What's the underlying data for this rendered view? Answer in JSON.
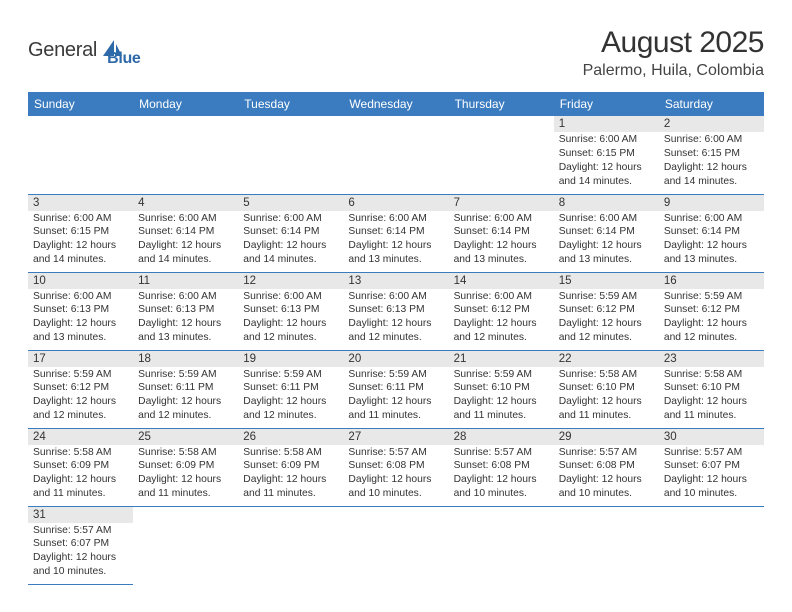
{
  "logo": {
    "text1": "General",
    "text2": "Blue"
  },
  "header": {
    "title": "August 2025",
    "location": "Palermo, Huila, Colombia"
  },
  "colors": {
    "header_bg": "#3b7bbf",
    "header_text": "#ffffff",
    "daynum_bg": "#e8e8e8",
    "border": "#3b7bbf",
    "text": "#333333",
    "logo_gray": "#3a3a3a",
    "logo_blue": "#2f6aa8"
  },
  "typography": {
    "title_fontsize": 30,
    "location_fontsize": 16,
    "weekday_fontsize": 12,
    "daynum_fontsize": 11.5,
    "info_fontsize": 10.3
  },
  "weekdays": [
    "Sunday",
    "Monday",
    "Tuesday",
    "Wednesday",
    "Thursday",
    "Friday",
    "Saturday"
  ],
  "weeks": [
    [
      null,
      null,
      null,
      null,
      null,
      {
        "day": "1",
        "sunrise": "Sunrise: 6:00 AM",
        "sunset": "Sunset: 6:15 PM",
        "daylight1": "Daylight: 12 hours",
        "daylight2": "and 14 minutes."
      },
      {
        "day": "2",
        "sunrise": "Sunrise: 6:00 AM",
        "sunset": "Sunset: 6:15 PM",
        "daylight1": "Daylight: 12 hours",
        "daylight2": "and 14 minutes."
      }
    ],
    [
      {
        "day": "3",
        "sunrise": "Sunrise: 6:00 AM",
        "sunset": "Sunset: 6:15 PM",
        "daylight1": "Daylight: 12 hours",
        "daylight2": "and 14 minutes."
      },
      {
        "day": "4",
        "sunrise": "Sunrise: 6:00 AM",
        "sunset": "Sunset: 6:14 PM",
        "daylight1": "Daylight: 12 hours",
        "daylight2": "and 14 minutes."
      },
      {
        "day": "5",
        "sunrise": "Sunrise: 6:00 AM",
        "sunset": "Sunset: 6:14 PM",
        "daylight1": "Daylight: 12 hours",
        "daylight2": "and 14 minutes."
      },
      {
        "day": "6",
        "sunrise": "Sunrise: 6:00 AM",
        "sunset": "Sunset: 6:14 PM",
        "daylight1": "Daylight: 12 hours",
        "daylight2": "and 13 minutes."
      },
      {
        "day": "7",
        "sunrise": "Sunrise: 6:00 AM",
        "sunset": "Sunset: 6:14 PM",
        "daylight1": "Daylight: 12 hours",
        "daylight2": "and 13 minutes."
      },
      {
        "day": "8",
        "sunrise": "Sunrise: 6:00 AM",
        "sunset": "Sunset: 6:14 PM",
        "daylight1": "Daylight: 12 hours",
        "daylight2": "and 13 minutes."
      },
      {
        "day": "9",
        "sunrise": "Sunrise: 6:00 AM",
        "sunset": "Sunset: 6:14 PM",
        "daylight1": "Daylight: 12 hours",
        "daylight2": "and 13 minutes."
      }
    ],
    [
      {
        "day": "10",
        "sunrise": "Sunrise: 6:00 AM",
        "sunset": "Sunset: 6:13 PM",
        "daylight1": "Daylight: 12 hours",
        "daylight2": "and 13 minutes."
      },
      {
        "day": "11",
        "sunrise": "Sunrise: 6:00 AM",
        "sunset": "Sunset: 6:13 PM",
        "daylight1": "Daylight: 12 hours",
        "daylight2": "and 13 minutes."
      },
      {
        "day": "12",
        "sunrise": "Sunrise: 6:00 AM",
        "sunset": "Sunset: 6:13 PM",
        "daylight1": "Daylight: 12 hours",
        "daylight2": "and 12 minutes."
      },
      {
        "day": "13",
        "sunrise": "Sunrise: 6:00 AM",
        "sunset": "Sunset: 6:13 PM",
        "daylight1": "Daylight: 12 hours",
        "daylight2": "and 12 minutes."
      },
      {
        "day": "14",
        "sunrise": "Sunrise: 6:00 AM",
        "sunset": "Sunset: 6:12 PM",
        "daylight1": "Daylight: 12 hours",
        "daylight2": "and 12 minutes."
      },
      {
        "day": "15",
        "sunrise": "Sunrise: 5:59 AM",
        "sunset": "Sunset: 6:12 PM",
        "daylight1": "Daylight: 12 hours",
        "daylight2": "and 12 minutes."
      },
      {
        "day": "16",
        "sunrise": "Sunrise: 5:59 AM",
        "sunset": "Sunset: 6:12 PM",
        "daylight1": "Daylight: 12 hours",
        "daylight2": "and 12 minutes."
      }
    ],
    [
      {
        "day": "17",
        "sunrise": "Sunrise: 5:59 AM",
        "sunset": "Sunset: 6:12 PM",
        "daylight1": "Daylight: 12 hours",
        "daylight2": "and 12 minutes."
      },
      {
        "day": "18",
        "sunrise": "Sunrise: 5:59 AM",
        "sunset": "Sunset: 6:11 PM",
        "daylight1": "Daylight: 12 hours",
        "daylight2": "and 12 minutes."
      },
      {
        "day": "19",
        "sunrise": "Sunrise: 5:59 AM",
        "sunset": "Sunset: 6:11 PM",
        "daylight1": "Daylight: 12 hours",
        "daylight2": "and 12 minutes."
      },
      {
        "day": "20",
        "sunrise": "Sunrise: 5:59 AM",
        "sunset": "Sunset: 6:11 PM",
        "daylight1": "Daylight: 12 hours",
        "daylight2": "and 11 minutes."
      },
      {
        "day": "21",
        "sunrise": "Sunrise: 5:59 AM",
        "sunset": "Sunset: 6:10 PM",
        "daylight1": "Daylight: 12 hours",
        "daylight2": "and 11 minutes."
      },
      {
        "day": "22",
        "sunrise": "Sunrise: 5:58 AM",
        "sunset": "Sunset: 6:10 PM",
        "daylight1": "Daylight: 12 hours",
        "daylight2": "and 11 minutes."
      },
      {
        "day": "23",
        "sunrise": "Sunrise: 5:58 AM",
        "sunset": "Sunset: 6:10 PM",
        "daylight1": "Daylight: 12 hours",
        "daylight2": "and 11 minutes."
      }
    ],
    [
      {
        "day": "24",
        "sunrise": "Sunrise: 5:58 AM",
        "sunset": "Sunset: 6:09 PM",
        "daylight1": "Daylight: 12 hours",
        "daylight2": "and 11 minutes."
      },
      {
        "day": "25",
        "sunrise": "Sunrise: 5:58 AM",
        "sunset": "Sunset: 6:09 PM",
        "daylight1": "Daylight: 12 hours",
        "daylight2": "and 11 minutes."
      },
      {
        "day": "26",
        "sunrise": "Sunrise: 5:58 AM",
        "sunset": "Sunset: 6:09 PM",
        "daylight1": "Daylight: 12 hours",
        "daylight2": "and 11 minutes."
      },
      {
        "day": "27",
        "sunrise": "Sunrise: 5:57 AM",
        "sunset": "Sunset: 6:08 PM",
        "daylight1": "Daylight: 12 hours",
        "daylight2": "and 10 minutes."
      },
      {
        "day": "28",
        "sunrise": "Sunrise: 5:57 AM",
        "sunset": "Sunset: 6:08 PM",
        "daylight1": "Daylight: 12 hours",
        "daylight2": "and 10 minutes."
      },
      {
        "day": "29",
        "sunrise": "Sunrise: 5:57 AM",
        "sunset": "Sunset: 6:08 PM",
        "daylight1": "Daylight: 12 hours",
        "daylight2": "and 10 minutes."
      },
      {
        "day": "30",
        "sunrise": "Sunrise: 5:57 AM",
        "sunset": "Sunset: 6:07 PM",
        "daylight1": "Daylight: 12 hours",
        "daylight2": "and 10 minutes."
      }
    ],
    [
      {
        "day": "31",
        "sunrise": "Sunrise: 5:57 AM",
        "sunset": "Sunset: 6:07 PM",
        "daylight1": "Daylight: 12 hours",
        "daylight2": "and 10 minutes."
      },
      null,
      null,
      null,
      null,
      null,
      null
    ]
  ]
}
